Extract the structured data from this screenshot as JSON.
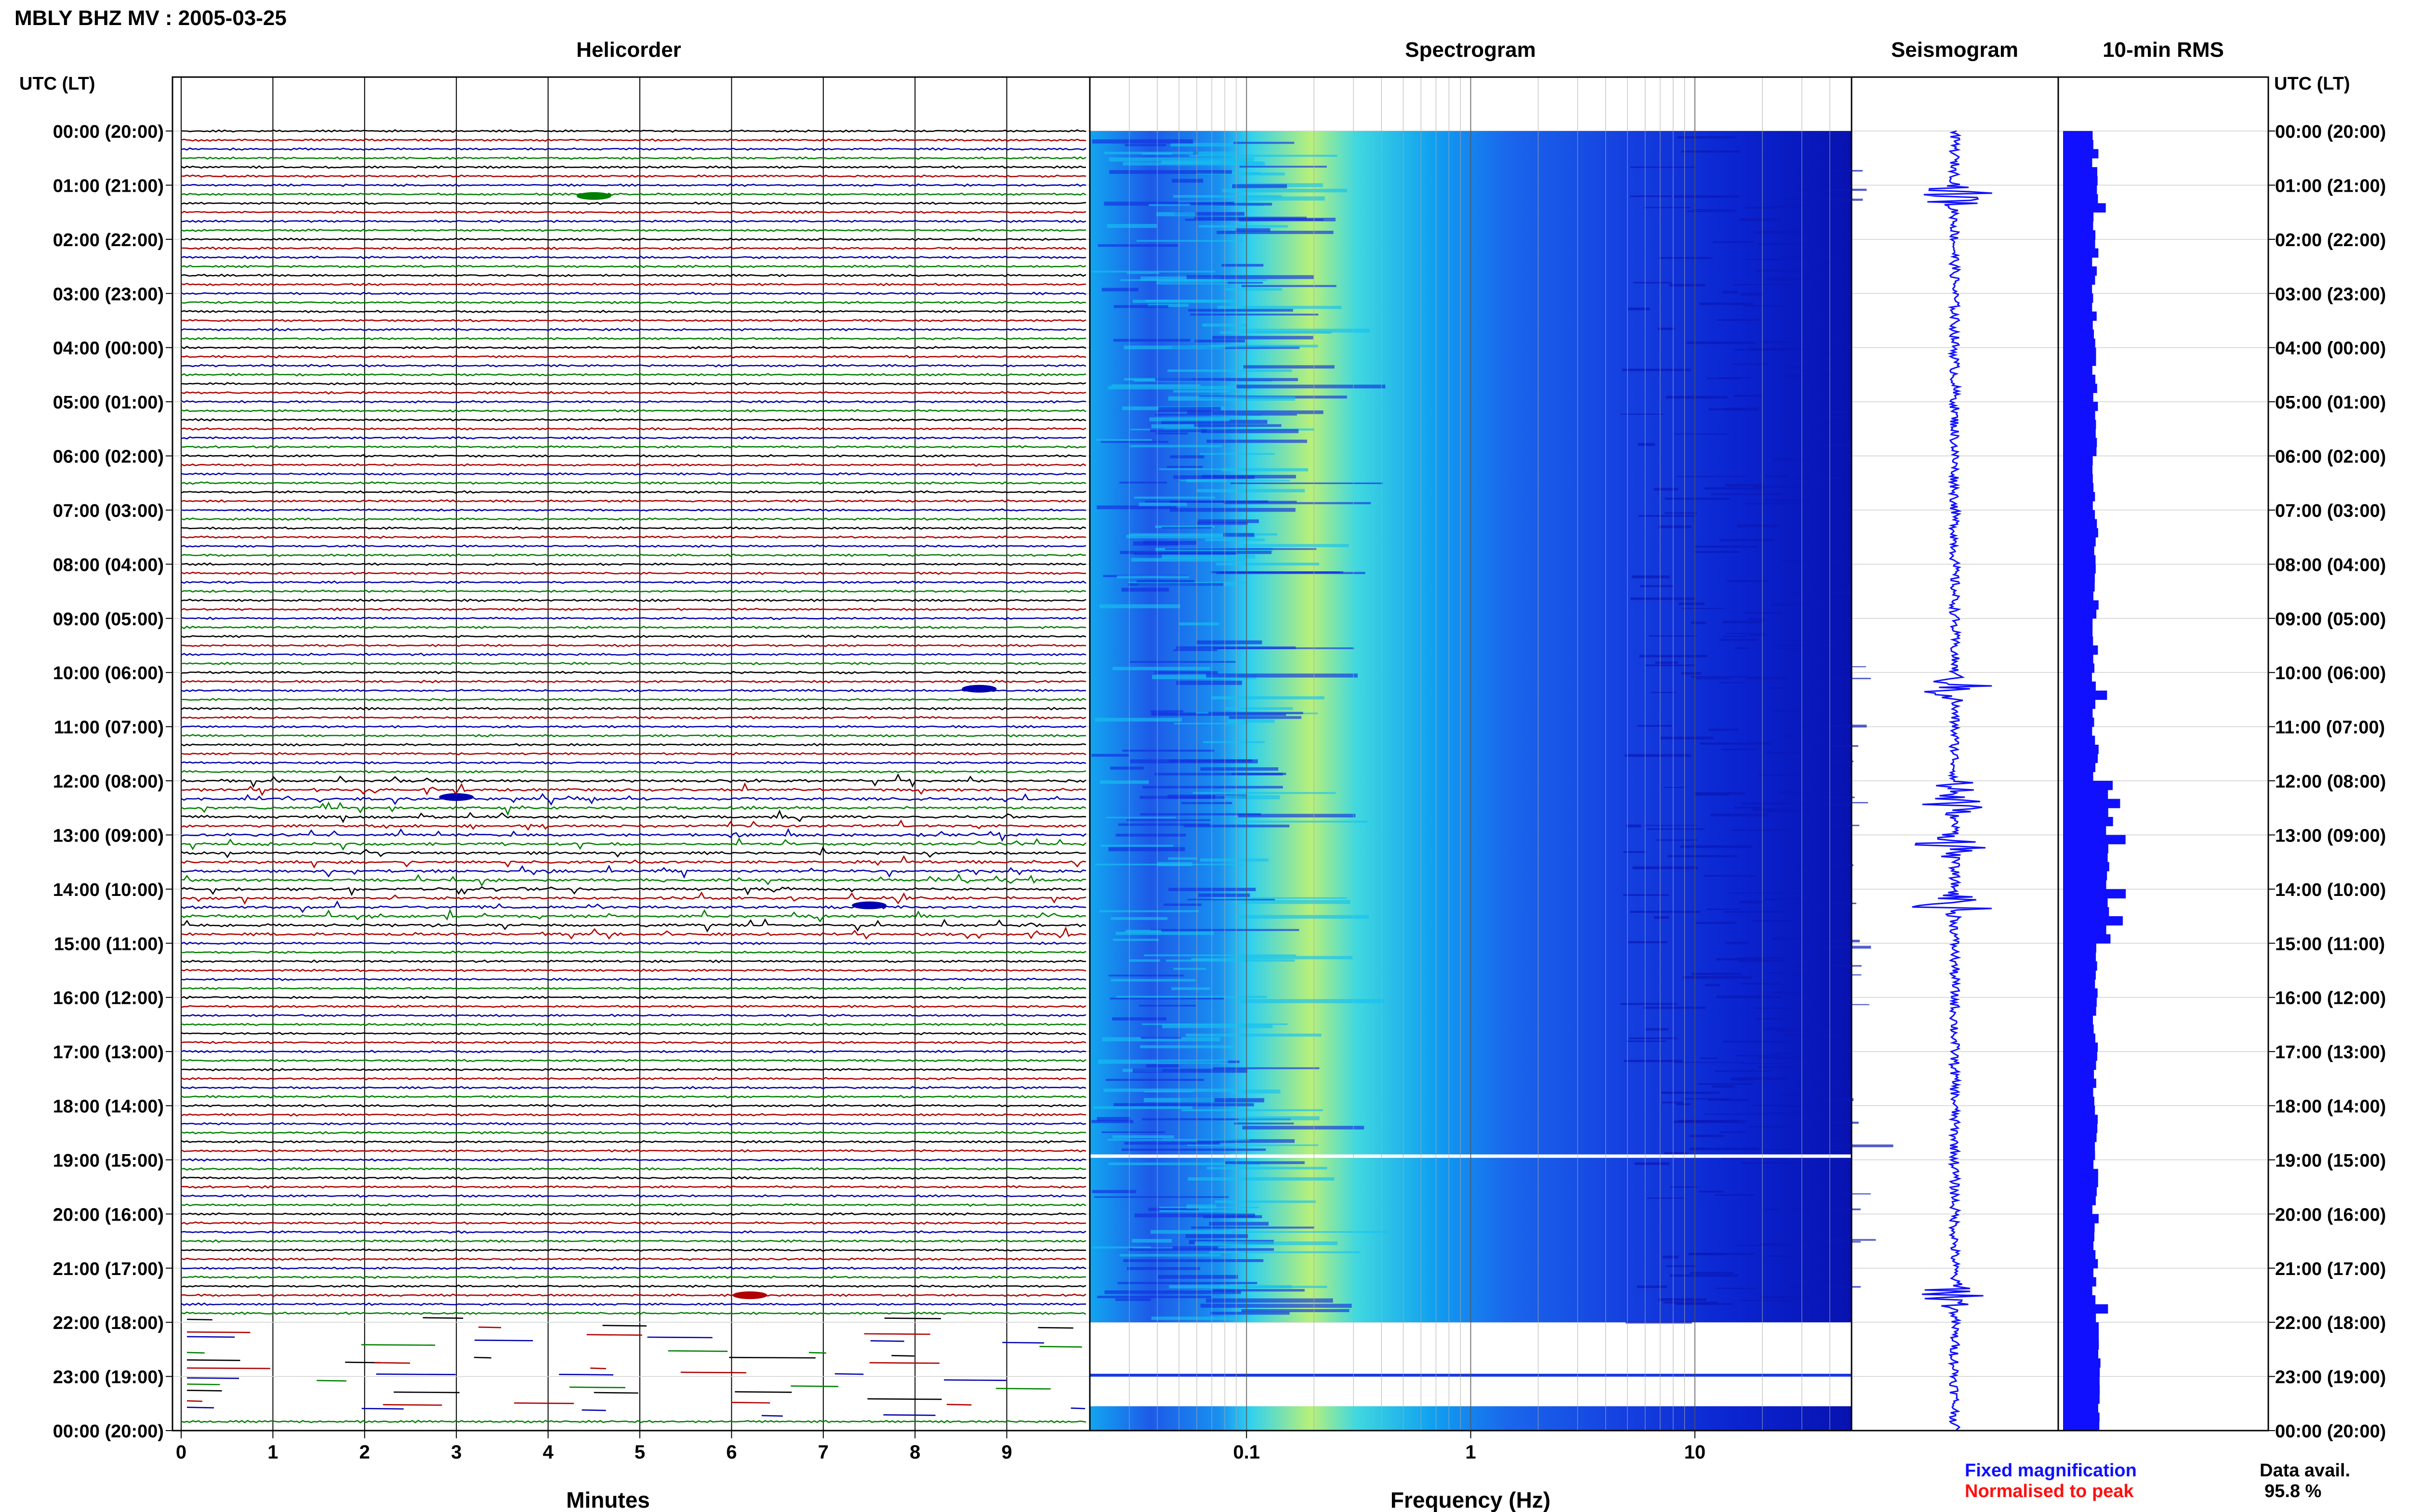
{
  "header": {
    "title": "MBLY BHZ MV : 2005-03-25",
    "utc_label_left": "UTC (LT)",
    "utc_label_right": "UTC (LT)"
  },
  "panels": {
    "helicorder": "Helicorder",
    "spectrogram": "Spectrogram",
    "seismogram": "Seismogram",
    "rms": "10-min RMS"
  },
  "axes": {
    "minutes_label": "Minutes",
    "frequency_label": "Frequency (Hz)"
  },
  "legend": {
    "fixed": "Fixed magnification",
    "normalised": "Normalised to peak",
    "fixed_color": "#1010ff",
    "normalised_color": "#ff1010"
  },
  "data_avail": {
    "label": "Data avail.",
    "value": "95.8 %"
  },
  "colors": {
    "trace_cycle": [
      "#000000",
      "#b00000",
      "#0000b0",
      "#008000"
    ],
    "spectrogram_low": "#0a1fd0",
    "spectrogram_mid": "#10b0f0",
    "spectrogram_high": "#d0f060",
    "seismogram": "#1010ff",
    "rms": "#1010ff"
  },
  "chart_data": [
    {
      "type": "line",
      "name": "helicorder",
      "x_ticks": [
        "0",
        "1",
        "2",
        "3",
        "4",
        "5",
        "6",
        "7",
        "8",
        "9"
      ],
      "xlim": [
        0,
        10
      ],
      "xlabel": "Minutes",
      "row_minutes": 10,
      "row_count": 144,
      "y_ticks_utc": [
        "00:00 (20:00)",
        "01:00 (21:00)",
        "02:00 (22:00)",
        "03:00 (23:00)",
        "04:00 (00:00)",
        "05:00 (01:00)",
        "06:00 (02:00)",
        "07:00 (03:00)",
        "08:00 (04:00)",
        "09:00 (05:00)",
        "10:00 (06:00)",
        "11:00 (07:00)",
        "12:00 (08:00)",
        "13:00 (09:00)",
        "14:00 (10:00)",
        "15:00 (11:00)",
        "16:00 (12:00)",
        "17:00 (13:00)",
        "18:00 (14:00)",
        "19:00 (15:00)",
        "20:00 (16:00)",
        "21:00 (17:00)",
        "22:00 (18:00)",
        "23:00 (19:00)",
        "00:00 (20:00)"
      ],
      "events": [
        {
          "hour": 1.2,
          "minute": 4.5
        },
        {
          "hour": 10.3,
          "minute": 8.7
        },
        {
          "hour": 12.3,
          "minute": 3.0
        },
        {
          "hour": 14.3,
          "minute": 7.5
        },
        {
          "hour": 21.5,
          "minute": 6.2
        }
      ],
      "gap_hours": [
        22.0,
        23.8
      ]
    },
    {
      "type": "heatmap",
      "name": "spectrogram",
      "x_ticks": [
        "0.1",
        "1",
        "10"
      ],
      "xscale": "log",
      "xlim": [
        0.02,
        50
      ],
      "xlabel": "Frequency (Hz)",
      "peak_band_hz": [
        0.15,
        0.5
      ],
      "data_gaps_utc": [
        "18:55",
        "22:00-23:00",
        "23:00-23:30"
      ]
    },
    {
      "type": "line",
      "name": "seismogram",
      "bursts_utc_hour": [
        1.2,
        10.3,
        12.2,
        12.4,
        13.2,
        14.3,
        21.5
      ]
    },
    {
      "type": "bar",
      "name": "10-min RMS",
      "orientation": "horizontal",
      "spikes_utc_hour": [
        1.4,
        10.3,
        12.3,
        13.0,
        14.0,
        14.5,
        21.6
      ]
    }
  ]
}
